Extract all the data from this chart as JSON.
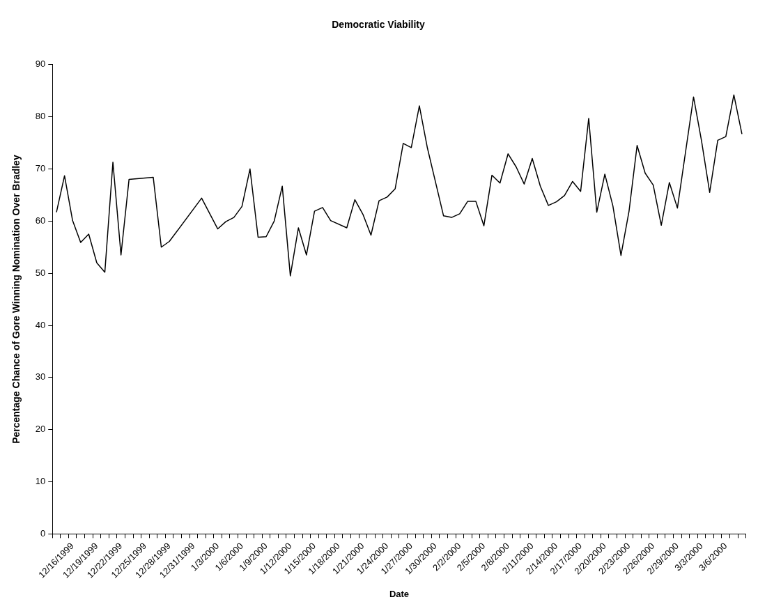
{
  "chart_data": {
    "type": "line",
    "title": "Democratic Viability",
    "xlabel": "Date",
    "ylabel": "Percentage Chance of Gore Winning Nomination Over Bradley",
    "categories": [
      null,
      null,
      "12/16/1999",
      null,
      null,
      "12/19/1999",
      null,
      null,
      "12/22/1999",
      null,
      null,
      "12/25/1999",
      null,
      null,
      "12/28/1999",
      null,
      null,
      "12/31/1999",
      null,
      null,
      "1/3/2000",
      null,
      null,
      "1/6/2000",
      null,
      null,
      "1/9/2000",
      null,
      null,
      "1/12/2000",
      null,
      null,
      "1/15/2000",
      null,
      null,
      "1/18/2000",
      null,
      null,
      "1/21/2000",
      null,
      null,
      "1/24/2000",
      null,
      null,
      "1/27/2000",
      null,
      null,
      "1/30/2000",
      null,
      null,
      "2/2/2000",
      null,
      null,
      "2/5/2000",
      null,
      null,
      "2/8/2000",
      null,
      null,
      "2/11/2000",
      null,
      null,
      "2/14/2000",
      null,
      null,
      "2/17/2000",
      null,
      null,
      "2/20/2000",
      null,
      null,
      "2/23/2000",
      null,
      null,
      "2/26/2000",
      null,
      null,
      "2/29/2000",
      null,
      null,
      "3/3/2000",
      null,
      null,
      "3/6/2000",
      null,
      null
    ],
    "series": [
      {
        "color": "#000000",
        "values": [
          61.7,
          68.7,
          60.1,
          55.9,
          57.5,
          52.0,
          50.2,
          71.3,
          53.5,
          68.0,
          null,
          null,
          68.4,
          55.0,
          56.1,
          null,
          null,
          null,
          64.4,
          null,
          58.5,
          59.9,
          60.7,
          62.8,
          70.0,
          56.9,
          57.0,
          60.0,
          66.7,
          49.5,
          58.7,
          53.5,
          61.9,
          62.6,
          60.1,
          null,
          58.7,
          64.1,
          61.3,
          57.3,
          63.9,
          64.6,
          66.2,
          74.9,
          74.1,
          82.1,
          74.0,
          null,
          61.0,
          60.7,
          61.4,
          63.8,
          63.8,
          59.1,
          68.8,
          67.3,
          72.9,
          70.4,
          67.1,
          72.0,
          66.7,
          63.0,
          63.7,
          64.9,
          67.6,
          65.7,
          79.7,
          61.7,
          69.0,
          62.9,
          53.4,
          61.9,
          74.5,
          69.2,
          66.9,
          59.2,
          67.4,
          62.5,
          null,
          83.8,
          75.3,
          65.5,
          75.5,
          76.2,
          84.2,
          76.7
        ]
      }
    ],
    "ylim": [
      0,
      90
    ],
    "yticks": [
      0,
      10,
      20,
      30,
      40,
      50,
      60,
      70,
      80,
      90
    ],
    "grid": false,
    "legend": false,
    "marker": "none",
    "line_style": "solid"
  }
}
